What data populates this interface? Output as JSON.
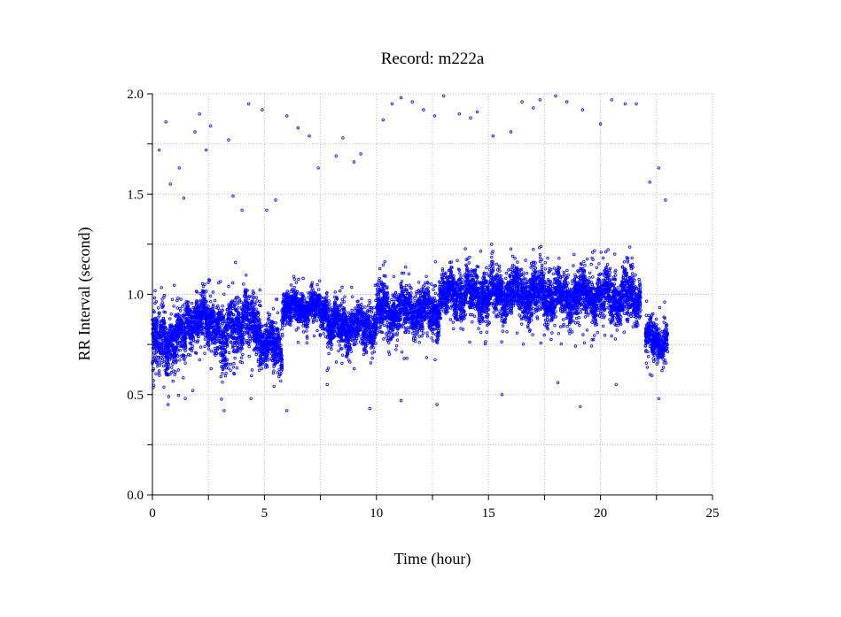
{
  "chart_data": {
    "type": "scatter",
    "title": "Record:  m222a",
    "xlabel": "Time (hour)",
    "ylabel": "RR Interval (second)",
    "xlim": [
      0,
      25
    ],
    "ylim": [
      0.0,
      2.0
    ],
    "x_ticks": [
      0,
      5,
      10,
      15,
      20,
      25
    ],
    "x_tick_labels": [
      "0",
      "5",
      "10",
      "15",
      "20",
      "25"
    ],
    "y_ticks": [
      0.0,
      0.5,
      1.0,
      1.5,
      2.0
    ],
    "y_tick_labels": [
      "0.0",
      "0.5",
      "1.0",
      "1.5",
      "2.0"
    ],
    "grid": true,
    "marker": "open-circle",
    "color": "#0000ff",
    "series": [
      {
        "segments": [
          {
            "x": [
              0.0,
              0.5
            ],
            "center": 0.75,
            "spread": 0.14
          },
          {
            "x": [
              0.5,
              1.5
            ],
            "center": 0.78,
            "spread": 0.12
          },
          {
            "x": [
              1.5,
              3.0
            ],
            "center": 0.87,
            "spread": 0.1
          },
          {
            "x": [
              3.0,
              3.4
            ],
            "center": 0.72,
            "spread": 0.16
          },
          {
            "x": [
              3.4,
              4.8
            ],
            "center": 0.86,
            "spread": 0.12
          },
          {
            "x": [
              4.8,
              5.8
            ],
            "center": 0.74,
            "spread": 0.1
          },
          {
            "x": [
              5.8,
              7.8
            ],
            "center": 0.93,
            "spread": 0.07
          },
          {
            "x": [
              7.8,
              10.0
            ],
            "center": 0.84,
            "spread": 0.09
          },
          {
            "x": [
              10.0,
              12.8
            ],
            "center": 0.92,
            "spread": 0.1
          },
          {
            "x": [
              12.8,
              17.5
            ],
            "center": 1.0,
            "spread": 0.1
          },
          {
            "x": [
              17.5,
              21.8
            ],
            "center": 0.99,
            "spread": 0.1
          },
          {
            "x": [
              22.0,
              23.0
            ],
            "center": 0.77,
            "spread": 0.08
          }
        ],
        "outliers": [
          [
            0.3,
            1.72
          ],
          [
            0.6,
            1.86
          ],
          [
            0.8,
            1.55
          ],
          [
            1.2,
            1.63
          ],
          [
            1.4,
            1.48
          ],
          [
            1.9,
            1.81
          ],
          [
            2.1,
            1.9
          ],
          [
            2.4,
            1.72
          ],
          [
            2.6,
            1.84
          ],
          [
            3.4,
            1.77
          ],
          [
            3.6,
            1.49
          ],
          [
            4.0,
            1.42
          ],
          [
            4.3,
            1.95
          ],
          [
            4.9,
            1.92
          ],
          [
            5.1,
            1.42
          ],
          [
            5.5,
            1.47
          ],
          [
            6.0,
            1.89
          ],
          [
            6.5,
            1.83
          ],
          [
            7.0,
            1.79
          ],
          [
            7.4,
            1.63
          ],
          [
            8.2,
            1.69
          ],
          [
            8.5,
            1.78
          ],
          [
            9.0,
            1.66
          ],
          [
            9.3,
            1.7
          ],
          [
            10.3,
            1.87
          ],
          [
            10.7,
            1.95
          ],
          [
            11.1,
            1.98
          ],
          [
            11.6,
            1.96
          ],
          [
            12.1,
            1.92
          ],
          [
            12.6,
            1.89
          ],
          [
            13.0,
            1.99
          ],
          [
            13.7,
            1.9
          ],
          [
            14.2,
            1.88
          ],
          [
            14.5,
            1.91
          ],
          [
            15.2,
            1.79
          ],
          [
            16.0,
            1.81
          ],
          [
            16.5,
            1.96
          ],
          [
            17.0,
            1.93
          ],
          [
            17.3,
            1.97
          ],
          [
            18.0,
            1.99
          ],
          [
            18.5,
            1.96
          ],
          [
            19.2,
            1.92
          ],
          [
            20.0,
            1.85
          ],
          [
            20.5,
            1.97
          ],
          [
            21.1,
            1.95
          ],
          [
            21.6,
            1.95
          ],
          [
            22.2,
            1.56
          ],
          [
            22.6,
            1.63
          ],
          [
            22.9,
            1.47
          ],
          [
            0.7,
            0.45
          ],
          [
            1.8,
            0.52
          ],
          [
            3.2,
            0.42
          ],
          [
            4.4,
            0.48
          ],
          [
            6.0,
            0.42
          ],
          [
            7.8,
            0.55
          ],
          [
            9.7,
            0.43
          ],
          [
            11.1,
            0.47
          ],
          [
            12.7,
            0.45
          ],
          [
            15.6,
            0.5
          ],
          [
            18.1,
            0.56
          ],
          [
            19.1,
            0.44
          ],
          [
            20.7,
            0.55
          ],
          [
            22.6,
            0.48
          ]
        ]
      }
    ]
  }
}
